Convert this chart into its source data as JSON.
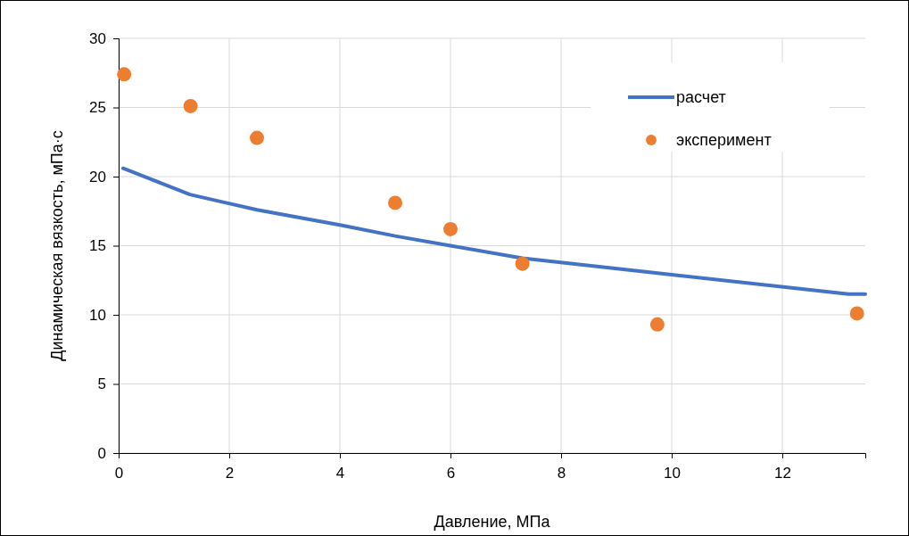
{
  "chart_data": {
    "type": "line",
    "xlabel": "Давление, МПа",
    "ylabel": "Динамическая вязкость, мПа·с",
    "xlim": [
      0,
      13.5
    ],
    "xticks": [
      0,
      2,
      4,
      6,
      8,
      10,
      12
    ],
    "ylim": [
      0,
      30
    ],
    "yticks": [
      0,
      5,
      10,
      15,
      20,
      25,
      30
    ],
    "grid": true,
    "legend": "top right",
    "series": [
      {
        "name": "расчет",
        "color": "#4472c4",
        "marker": "none",
        "line_style": "solid",
        "x": [
          0.08,
          1.29,
          2.5,
          4,
          5,
          6,
          7.3,
          10,
          13.2,
          13.5
        ],
        "values": [
          20.6,
          18.7,
          17.6,
          16.5,
          15.7,
          15.0,
          14.1,
          12.9,
          11.5,
          11.5
        ]
      },
      {
        "name": "эксперимент",
        "type": "scatter",
        "color": "#ed7d31",
        "marker": "circle",
        "x": [
          0.1,
          1.3,
          2.5,
          5,
          6,
          7.3,
          9.74,
          13.35
        ],
        "values": [
          27.4,
          25.1,
          22.8,
          18.1,
          16.2,
          13.7,
          9.3,
          10.1
        ]
      }
    ]
  }
}
